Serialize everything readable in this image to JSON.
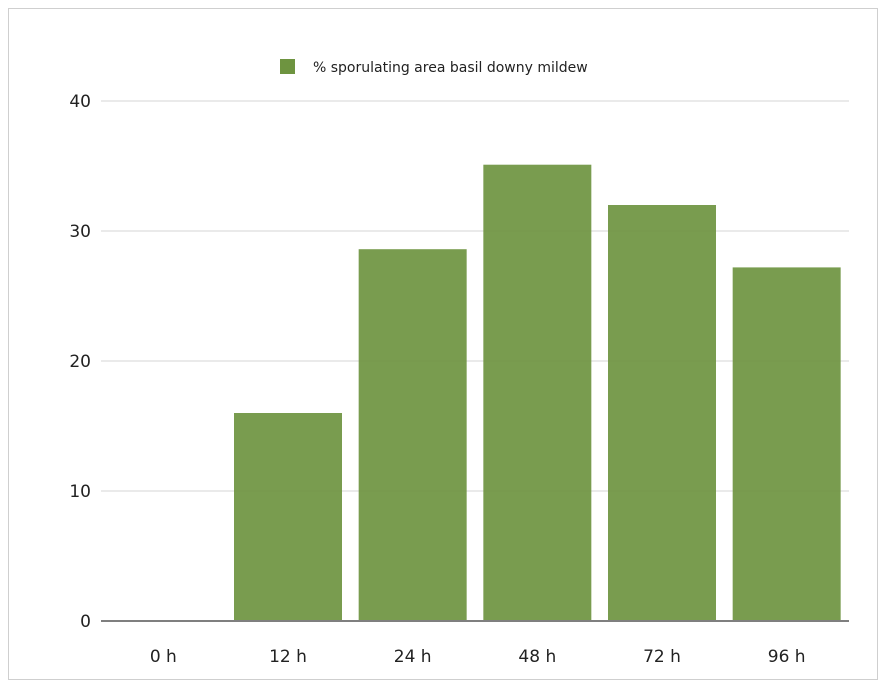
{
  "chart_data": {
    "type": "bar",
    "title": "",
    "xlabel": "",
    "ylabel": "",
    "categories": [
      "0 h",
      "12 h",
      "24 h",
      "48 h",
      "72 h",
      "96 h"
    ],
    "series": [
      {
        "name": "% sporulating area basil downy mildew",
        "values": [
          0,
          16,
          28.6,
          35.1,
          32,
          27.2
        ],
        "color": "#6e9440"
      }
    ],
    "ylim": [
      0,
      40
    ],
    "yticks": [
      0,
      10,
      20,
      30,
      40
    ],
    "ytick_labels": [
      "0",
      "10",
      "20",
      "30",
      "40"
    ],
    "grid": true,
    "legend_position": "top-center"
  }
}
